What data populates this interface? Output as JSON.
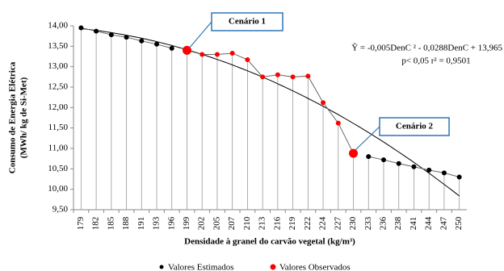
{
  "chart_data": {
    "type": "line",
    "y_label": [
      "Consumo de Energia Elétrica",
      "(MWh/ kg de Si-Met)"
    ],
    "x_label": "Densidade à granel do carvão vegetal (kg/m³)",
    "categories": [
      "179",
      "182",
      "185",
      "188",
      "191",
      "193",
      "196",
      "199",
      "202",
      "205",
      "207",
      "210",
      "213",
      "216",
      "219",
      "222",
      "224",
      "227",
      "230",
      "233",
      "236",
      "238",
      "241",
      "244",
      "247",
      "250"
    ],
    "series": [
      {
        "name": "Valores Estimados",
        "color": "#000000",
        "values": [
          13.95,
          13.87,
          13.78,
          13.72,
          13.63,
          13.55,
          13.45,
          null,
          null,
          null,
          null,
          null,
          null,
          null,
          null,
          null,
          null,
          null,
          null,
          10.8,
          10.72,
          10.63,
          10.55,
          10.47,
          10.4,
          10.3
        ]
      },
      {
        "name": "Valores Observados",
        "color": "#ff0000",
        "values": [
          null,
          null,
          null,
          null,
          null,
          null,
          null,
          13.4,
          13.3,
          13.3,
          13.33,
          13.17,
          12.75,
          12.8,
          12.75,
          12.77,
          12.12,
          11.62,
          10.88,
          null,
          null,
          null,
          null,
          null,
          null,
          null
        ]
      }
    ],
    "ylim": [
      9.5,
      14
    ],
    "yticks": [
      {
        "value": 9.5,
        "label": "9,50"
      },
      {
        "value": 10,
        "label": "10,00"
      },
      {
        "value": 10.5,
        "label": "10,50"
      },
      {
        "value": 11,
        "label": "11,00"
      },
      {
        "value": 11.5,
        "label": "11,50"
      },
      {
        "value": 12,
        "label": "12,00"
      },
      {
        "value": 12.5,
        "label": "12,50"
      },
      {
        "value": 13,
        "label": "13,00"
      },
      {
        "value": 13.5,
        "label": "13,50"
      },
      {
        "value": 14,
        "label": "14,00"
      }
    ],
    "trend": {
      "coefficients": [
        -0.005,
        -0.0288,
        13.965
      ],
      "equation": [
        "Ŷ = -0,005DenC ² - 0,0288DenC + 13,965",
        "p< 0,05  r² = 0,9501"
      ]
    },
    "annotations": [
      "Cenário 1",
      "Cenário 2"
    ]
  }
}
